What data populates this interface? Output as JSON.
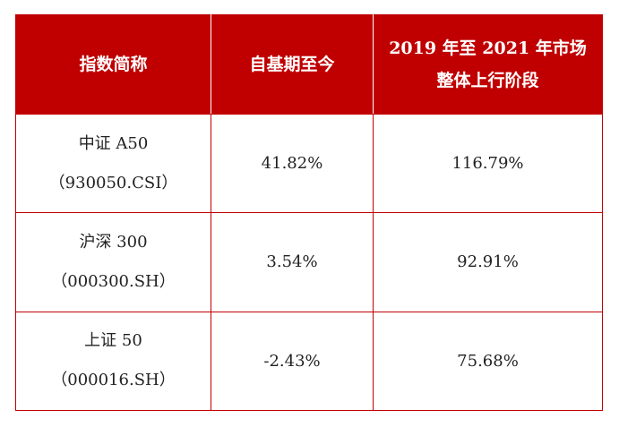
{
  "table": {
    "headers": {
      "name": "指数简称",
      "since_base": "自基期至今",
      "rally_line1": "2019 年至 2021 年市场",
      "rally_line2": "整体上行阶段"
    },
    "rows": [
      {
        "name": "中证 A50",
        "code": "（930050.CSI）",
        "since_base": "41.82%",
        "rally": "116.79%"
      },
      {
        "name": "沪深 300",
        "code": "（000300.SH）",
        "since_base": "3.54%",
        "rally": "92.91%"
      },
      {
        "name": "上证 50",
        "code": "（000016.SH）",
        "since_base": "-2.43%",
        "rally": "75.68%"
      }
    ],
    "colors": {
      "header_bg": "#c00000",
      "header_text": "#ffffff",
      "border": "#c00000"
    }
  }
}
